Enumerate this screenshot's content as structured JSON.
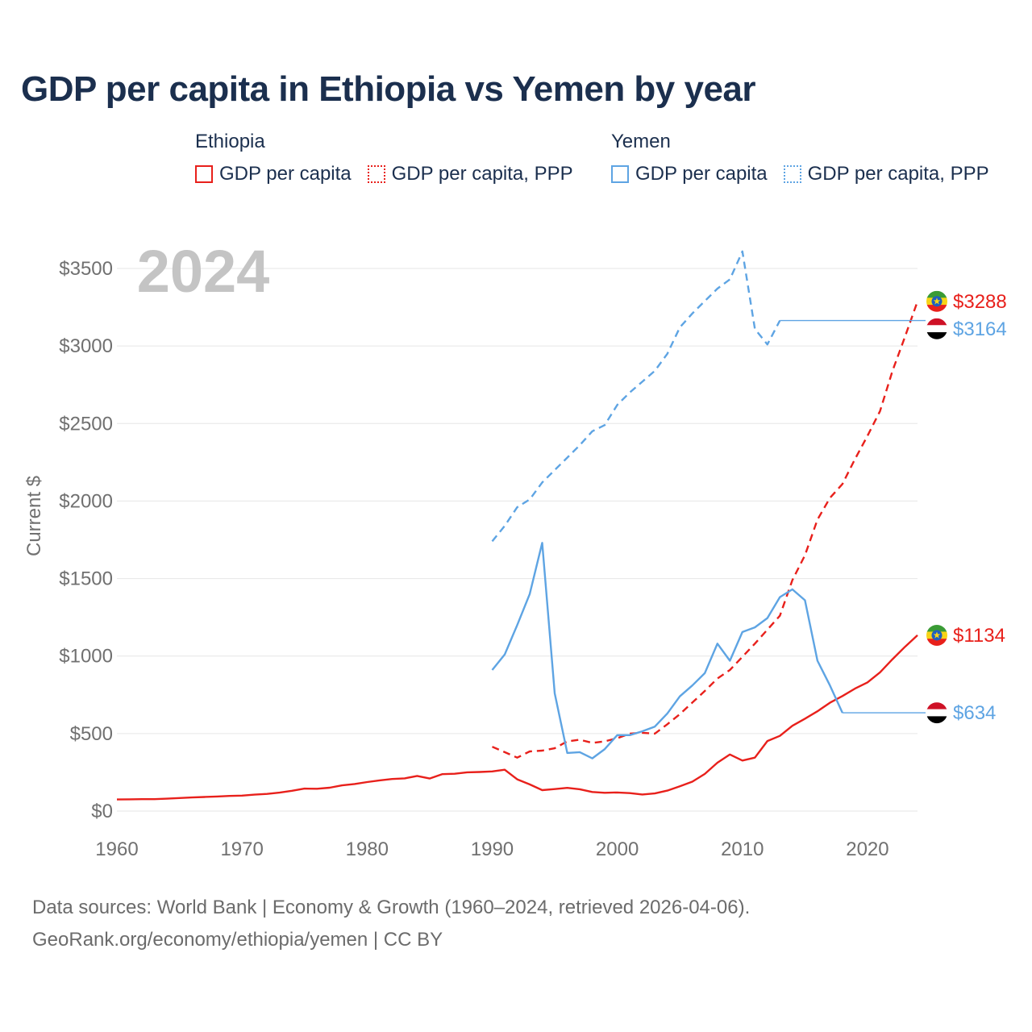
{
  "title": "GDP per capita in Ethiopia vs Yemen by year",
  "legend": {
    "groups": [
      {
        "name": "Ethiopia",
        "color": "#e8201b",
        "items": [
          {
            "label": "GDP per capita",
            "style": "solid"
          },
          {
            "label": "GDP per capita, PPP",
            "style": "dotted"
          }
        ]
      },
      {
        "name": "Yemen",
        "color": "#5ea4e3",
        "items": [
          {
            "label": "GDP per capita",
            "style": "solid"
          },
          {
            "label": "GDP per capita, PPP",
            "style": "dotted"
          }
        ]
      }
    ]
  },
  "footer": {
    "line1": "Data sources: World Bank | Economy & Growth (1960–2024, retrieved 2026-04-06).",
    "line2": "GeoRank.org/economy/ethiopia/yemen | CC BY"
  },
  "chart_data": {
    "type": "line",
    "title": "GDP per capita in Ethiopia vs Yemen by year",
    "year_label": "2024",
    "ylabel": "Current $",
    "xlim": [
      1960,
      2024
    ],
    "ylim": [
      0,
      3500
    ],
    "x_ticks": [
      1960,
      1970,
      1980,
      1990,
      2000,
      2010,
      2020
    ],
    "y_ticks": [
      0,
      500,
      1000,
      1500,
      2000,
      2500,
      3000,
      3500
    ],
    "y_tick_labels": [
      "$0",
      "$500",
      "$1000",
      "$1500",
      "$2000",
      "$2500",
      "$3000",
      "$3500"
    ],
    "series": [
      {
        "name": "Ethiopia GDP per capita",
        "color": "#e8201b",
        "dash": "solid",
        "end_label": "$1134",
        "flag": "ethiopia",
        "x": [
          1960,
          1961,
          1962,
          1963,
          1964,
          1965,
          1966,
          1967,
          1968,
          1969,
          1970,
          1971,
          1972,
          1973,
          1974,
          1975,
          1976,
          1977,
          1978,
          1979,
          1980,
          1981,
          1982,
          1983,
          1984,
          1985,
          1986,
          1987,
          1988,
          1989,
          1990,
          1991,
          1992,
          1993,
          1994,
          1995,
          1996,
          1997,
          1998,
          1999,
          2000,
          2001,
          2002,
          2003,
          2004,
          2005,
          2006,
          2007,
          2008,
          2009,
          2010,
          2011,
          2012,
          2013,
          2014,
          2015,
          2016,
          2017,
          2018,
          2019,
          2020,
          2021,
          2022,
          2023,
          2024
        ],
        "values": [
          75,
          76,
          77,
          77,
          80,
          84,
          88,
          91,
          94,
          98,
          100,
          106,
          111,
          119,
          131,
          145,
          144,
          151,
          166,
          175,
          187,
          198,
          207,
          211,
          227,
          210,
          238,
          241,
          250,
          252,
          256,
          267,
          205,
          172,
          135,
          142,
          150,
          141,
          123,
          118,
          120,
          116,
          107,
          114,
          132,
          160,
          190,
          240,
          312,
          365,
          326,
          345,
          452,
          485,
          550,
          596,
          644,
          699,
          742,
          790,
          830,
          895,
          980,
          1060,
          1134
        ]
      },
      {
        "name": "Ethiopia GDP per capita, PPP",
        "color": "#e8201b",
        "dash": "dashed",
        "end_label": "$3288",
        "flag": "ethiopia",
        "x": [
          1990,
          1991,
          1992,
          1993,
          1994,
          1995,
          1996,
          1997,
          1998,
          1999,
          2000,
          2001,
          2002,
          2003,
          2004,
          2005,
          2006,
          2007,
          2008,
          2009,
          2010,
          2011,
          2012,
          2013,
          2014,
          2015,
          2016,
          2017,
          2018,
          2019,
          2020,
          2021,
          2022,
          2023,
          2024
        ],
        "values": [
          415,
          380,
          345,
          385,
          390,
          405,
          450,
          460,
          440,
          450,
          470,
          500,
          505,
          500,
          560,
          625,
          700,
          775,
          855,
          910,
          995,
          1080,
          1170,
          1260,
          1490,
          1650,
          1880,
          2020,
          2110,
          2270,
          2420,
          2580,
          2840,
          3060,
          3288
        ]
      },
      {
        "name": "Yemen GDP per capita",
        "color": "#5ea4e3",
        "dash": "solid",
        "end_label": "$634",
        "flag": "yemen",
        "x": [
          1990,
          1991,
          1992,
          1993,
          1994,
          1995,
          1996,
          1997,
          1998,
          1999,
          2000,
          2001,
          2002,
          2003,
          2004,
          2005,
          2006,
          2007,
          2008,
          2009,
          2010,
          2011,
          2012,
          2013,
          2014,
          2015,
          2016,
          2017,
          2018,
          2024
        ],
        "values": [
          910,
          1010,
          1200,
          1400,
          1730,
          760,
          375,
          380,
          340,
          400,
          490,
          490,
          515,
          545,
          630,
          740,
          810,
          890,
          1080,
          970,
          1155,
          1185,
          1245,
          1380,
          1430,
          1360,
          970,
          810,
          634,
          634
        ]
      },
      {
        "name": "Yemen GDP per capita, PPP",
        "color": "#5ea4e3",
        "dash": "dashed",
        "end_label": "$3164",
        "flag": "yemen",
        "x": [
          1990,
          1991,
          1992,
          1993,
          1994,
          1995,
          1996,
          1997,
          1998,
          1999,
          2000,
          2001,
          2002,
          2003,
          2004,
          2005,
          2006,
          2007,
          2008,
          2009,
          2010,
          2011,
          2012,
          2013,
          2024
        ],
        "values": [
          1740,
          1840,
          1960,
          2010,
          2120,
          2200,
          2280,
          2360,
          2450,
          2490,
          2620,
          2700,
          2770,
          2840,
          2950,
          3120,
          3210,
          3290,
          3370,
          3430,
          3610,
          3110,
          3010,
          3164,
          3164
        ]
      }
    ]
  }
}
